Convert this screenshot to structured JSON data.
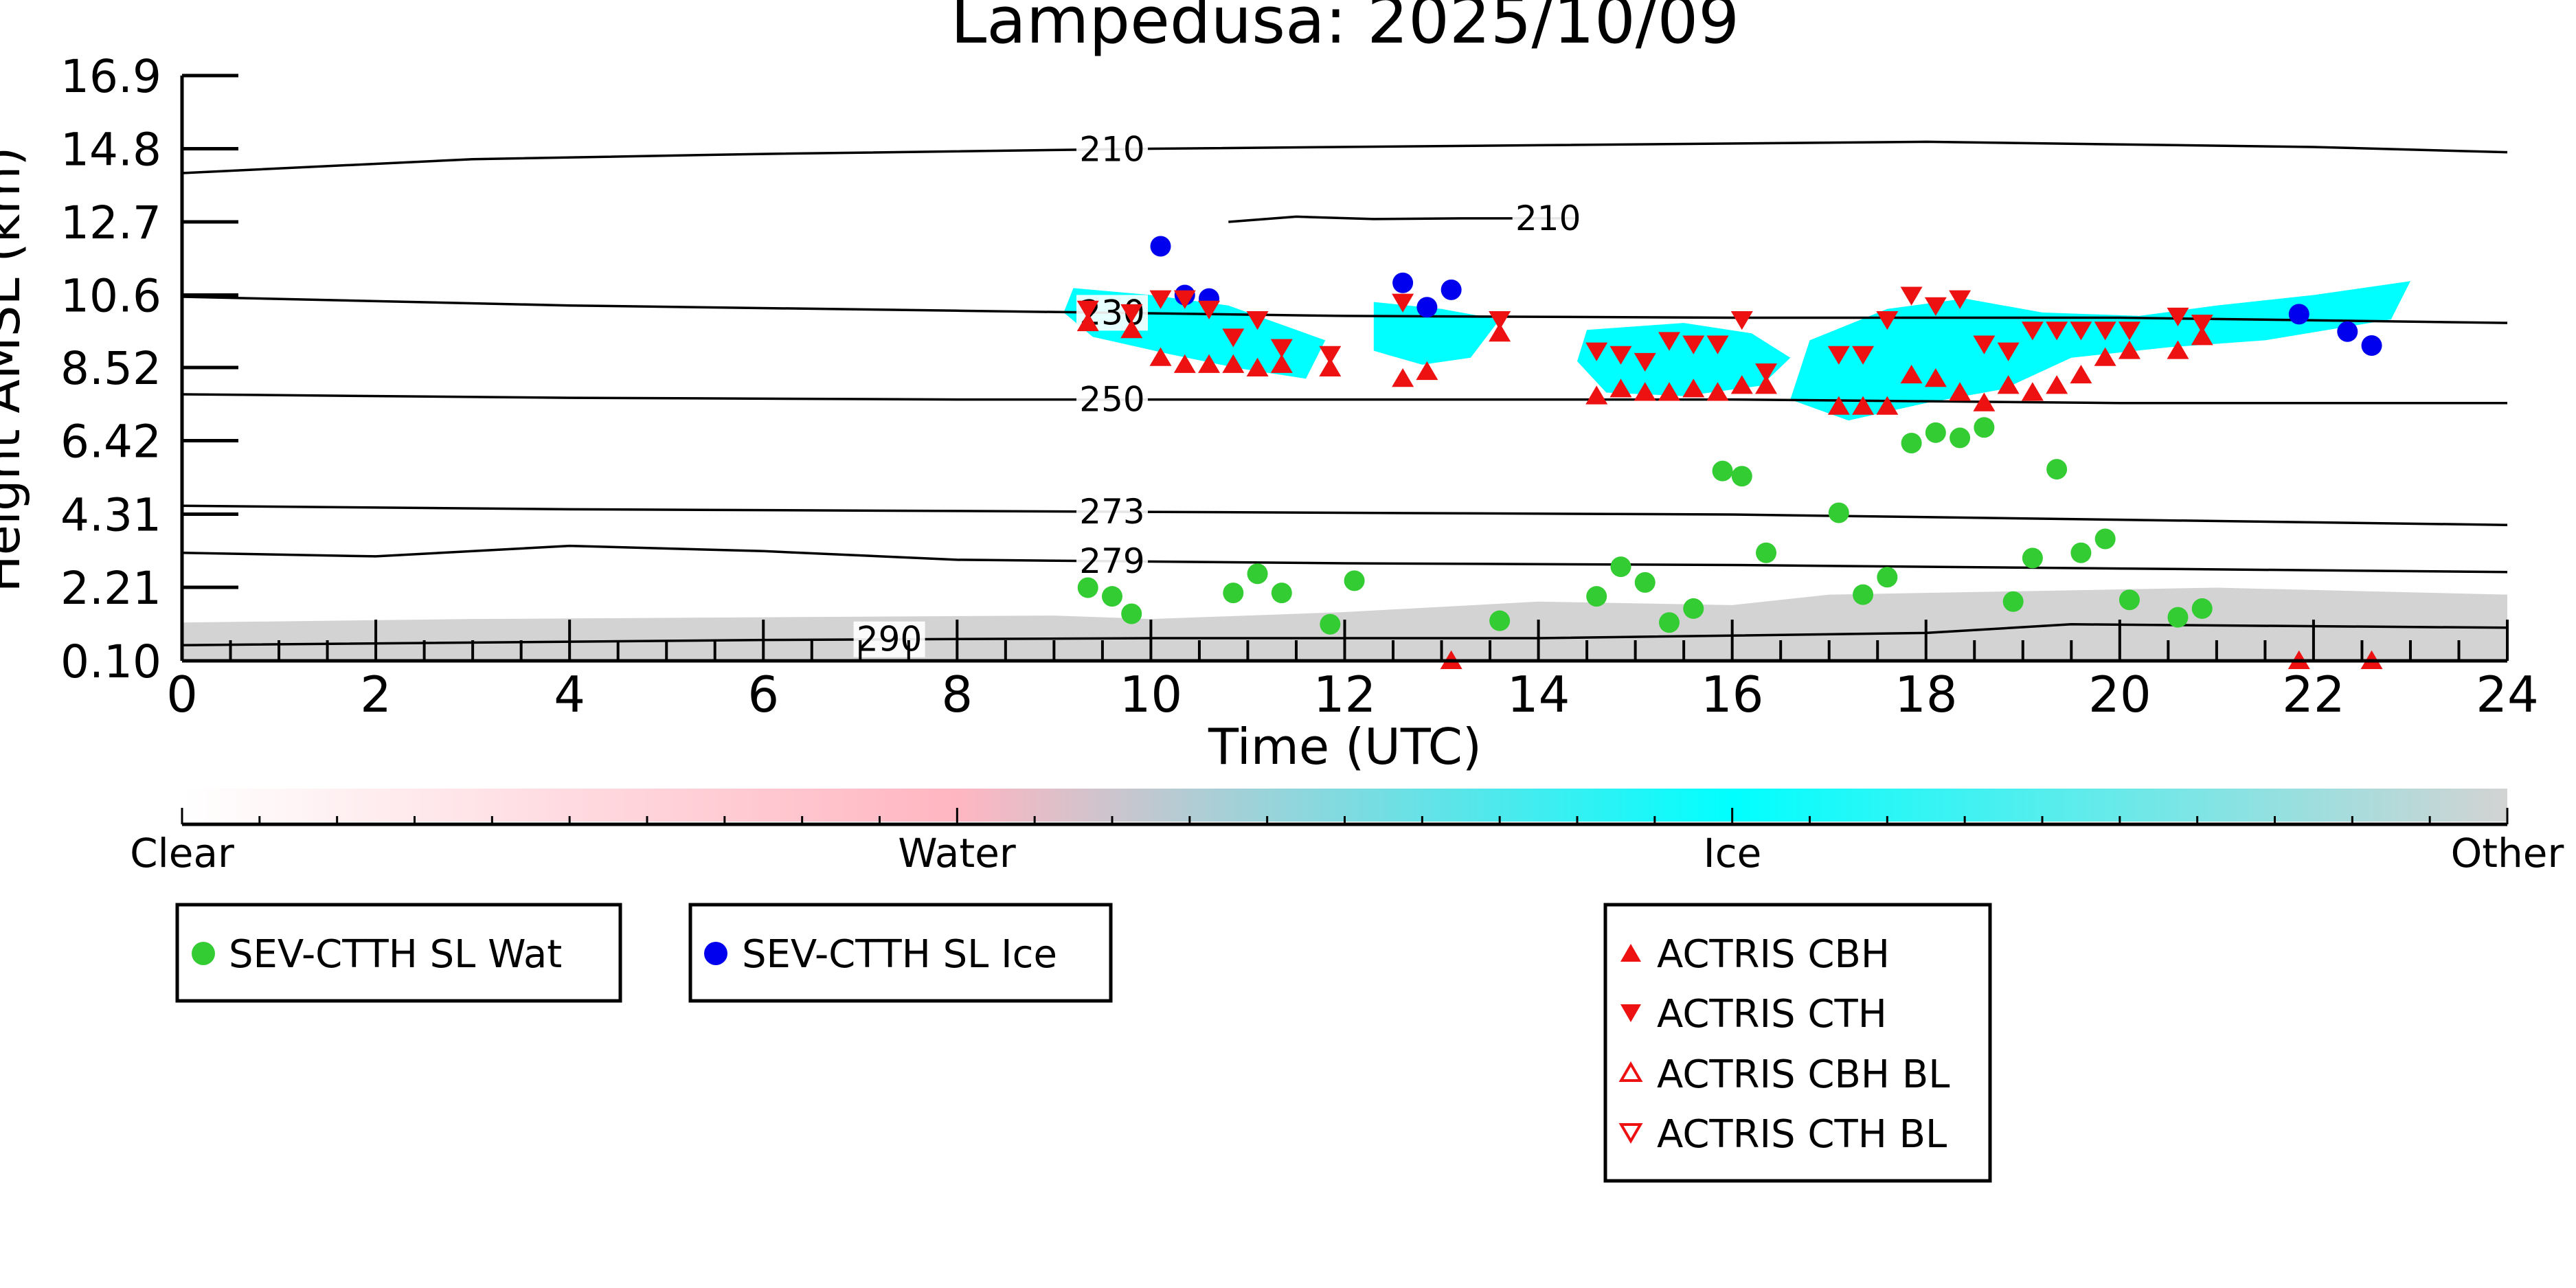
{
  "colors": {
    "water_marker": "#33cc33",
    "ice_marker": "#0000ee",
    "actris": "#ee1111",
    "ice_cloud": "#00ffff",
    "other": "#d3d3d3",
    "water_cb": "#ffb6c1",
    "contour": "#000000"
  },
  "chart_data": {
    "type": "scatter",
    "title": "Lampedusa: 2025/10/09",
    "xlabel": "Time (UTC)",
    "ylabel": "Height AMSL (km)",
    "xlim": [
      0,
      24
    ],
    "ylim": [
      0.1,
      16.9
    ],
    "x_ticks": [
      "0",
      "2",
      "4",
      "6",
      "8",
      "10",
      "12",
      "14",
      "16",
      "18",
      "20",
      "22",
      "24"
    ],
    "y_ticks": [
      "0.10",
      "2.21",
      "4.31",
      "6.42",
      "8.52",
      "10.6",
      "12.7",
      "14.8",
      "16.9"
    ],
    "colorbar": {
      "labels": [
        "Clear",
        "Water",
        "Ice",
        "Other"
      ]
    },
    "legend": {
      "sev_water": "SEV-CTTH SL Wat",
      "sev_ice": "SEV-CTTH SL Ice",
      "actris_cbh": "ACTRIS CBH",
      "actris_cth": "ACTRIS CTH",
      "actris_cbh_bl": "ACTRIS CBH BL",
      "actris_cth_bl": "ACTRIS CTH BL"
    },
    "contours": [
      {
        "label": "210",
        "label_x": 9.6,
        "points": [
          [
            0,
            14.1
          ],
          [
            3,
            14.5
          ],
          [
            6,
            14.65
          ],
          [
            10,
            14.8
          ],
          [
            14,
            14.9
          ],
          [
            18,
            15.0
          ],
          [
            22,
            14.85
          ],
          [
            24,
            14.7
          ]
        ]
      },
      {
        "label": "210",
        "label_x": 14.1,
        "points": [
          [
            10.8,
            12.7
          ],
          [
            11.5,
            12.85
          ],
          [
            12.3,
            12.78
          ],
          [
            13.2,
            12.8
          ],
          [
            14.4,
            12.8
          ]
        ]
      },
      {
        "label": "230",
        "label_x": 9.6,
        "points": [
          [
            0,
            10.55
          ],
          [
            4,
            10.3
          ],
          [
            8,
            10.15
          ],
          [
            12,
            10.0
          ],
          [
            16,
            9.95
          ],
          [
            20,
            9.95
          ],
          [
            24,
            9.8
          ]
        ]
      },
      {
        "label": "250",
        "label_x": 9.6,
        "points": [
          [
            0,
            7.75
          ],
          [
            4,
            7.65
          ],
          [
            8,
            7.6
          ],
          [
            12,
            7.6
          ],
          [
            16,
            7.6
          ],
          [
            20,
            7.5
          ],
          [
            24,
            7.5
          ]
        ]
      },
      {
        "label": "273",
        "label_x": 9.6,
        "points": [
          [
            0,
            4.55
          ],
          [
            4,
            4.45
          ],
          [
            8,
            4.4
          ],
          [
            12,
            4.35
          ],
          [
            16,
            4.3
          ],
          [
            20,
            4.15
          ],
          [
            24,
            4.0
          ]
        ]
      },
      {
        "label": "279",
        "label_x": 9.6,
        "points": [
          [
            0,
            3.2
          ],
          [
            2,
            3.1
          ],
          [
            4,
            3.4
          ],
          [
            6,
            3.25
          ],
          [
            8,
            3.0
          ],
          [
            12,
            2.9
          ],
          [
            16,
            2.85
          ],
          [
            20,
            2.75
          ],
          [
            24,
            2.65
          ]
        ]
      },
      {
        "label": "290",
        "label_x": 7.3,
        "points": [
          [
            0,
            0.55
          ],
          [
            6,
            0.7
          ],
          [
            10,
            0.75
          ],
          [
            14,
            0.75
          ],
          [
            18,
            0.9
          ],
          [
            19.5,
            1.15
          ],
          [
            24,
            1.05
          ]
        ]
      }
    ],
    "sev_water": {
      "x": [
        9.35,
        9.6,
        9.8,
        10.85,
        11.1,
        11.35,
        11.85,
        12.1,
        13.6,
        14.6,
        14.85,
        15.1,
        15.35,
        15.6,
        15.9,
        16.1,
        16.35,
        17.1,
        17.35,
        17.6,
        17.85,
        18.1,
        18.35,
        18.6,
        18.9,
        19.1,
        19.35,
        19.6,
        19.85,
        20.1,
        20.6,
        20.85
      ],
      "y": [
        2.2,
        1.95,
        1.45,
        2.05,
        2.6,
        2.05,
        1.15,
        2.4,
        1.25,
        1.95,
        2.8,
        2.35,
        1.2,
        1.6,
        5.55,
        5.4,
        3.2,
        4.35,
        2.0,
        2.5,
        6.35,
        6.65,
        6.5,
        6.8,
        1.8,
        3.05,
        5.6,
        3.2,
        3.6,
        1.85,
        1.35,
        1.6
      ]
    },
    "sev_ice": {
      "x": [
        10.1,
        10.35,
        10.6,
        12.6,
        12.85,
        13.1,
        21.85,
        22.35,
        22.6
      ],
      "y": [
        12.0,
        10.6,
        10.5,
        10.95,
        10.25,
        10.75,
        10.05,
        9.55,
        9.15
      ]
    },
    "actris_cth": {
      "x": [
        9.35,
        9.8,
        10.1,
        10.35,
        10.6,
        10.85,
        11.1,
        11.35,
        11.85,
        12.6,
        13.6,
        14.6,
        14.85,
        15.1,
        15.35,
        15.6,
        15.85,
        16.1,
        16.35,
        17.1,
        17.35,
        17.6,
        17.85,
        18.1,
        18.35,
        18.6,
        18.85,
        19.1,
        19.35,
        19.6,
        19.85,
        20.1,
        20.6,
        20.85
      ],
      "y": [
        10.2,
        10.1,
        10.5,
        10.5,
        10.2,
        9.4,
        9.9,
        9.1,
        8.9,
        10.4,
        9.9,
        9.0,
        8.9,
        8.7,
        9.3,
        9.2,
        9.2,
        9.9,
        8.4,
        8.9,
        8.9,
        9.9,
        10.6,
        10.3,
        10.5,
        9.2,
        9.0,
        9.6,
        9.6,
        9.6,
        9.6,
        9.6,
        10.0,
        9.8
      ]
    },
    "actris_cbh": {
      "x": [
        9.35,
        9.8,
        10.1,
        10.35,
        10.6,
        10.85,
        11.1,
        11.35,
        11.85,
        12.6,
        12.85,
        13.6,
        14.6,
        14.85,
        15.1,
        15.35,
        15.6,
        15.85,
        16.1,
        16.35,
        17.1,
        17.35,
        17.6,
        17.85,
        18.1,
        18.35,
        18.6,
        18.85,
        19.1,
        19.35,
        19.6,
        19.85,
        20.1,
        20.6,
        20.85,
        13.1,
        21.85,
        22.6
      ],
      "y": [
        9.8,
        9.6,
        8.8,
        8.6,
        8.6,
        8.6,
        8.5,
        8.6,
        8.5,
        8.2,
        8.4,
        9.5,
        7.7,
        7.9,
        7.8,
        7.8,
        7.9,
        7.8,
        8.0,
        8.0,
        7.4,
        7.4,
        7.4,
        8.3,
        8.2,
        7.8,
        7.5,
        8.0,
        7.8,
        8.0,
        8.3,
        8.8,
        9.0,
        9.0,
        9.4,
        0.1,
        0.1,
        0.1
      ]
    }
  }
}
